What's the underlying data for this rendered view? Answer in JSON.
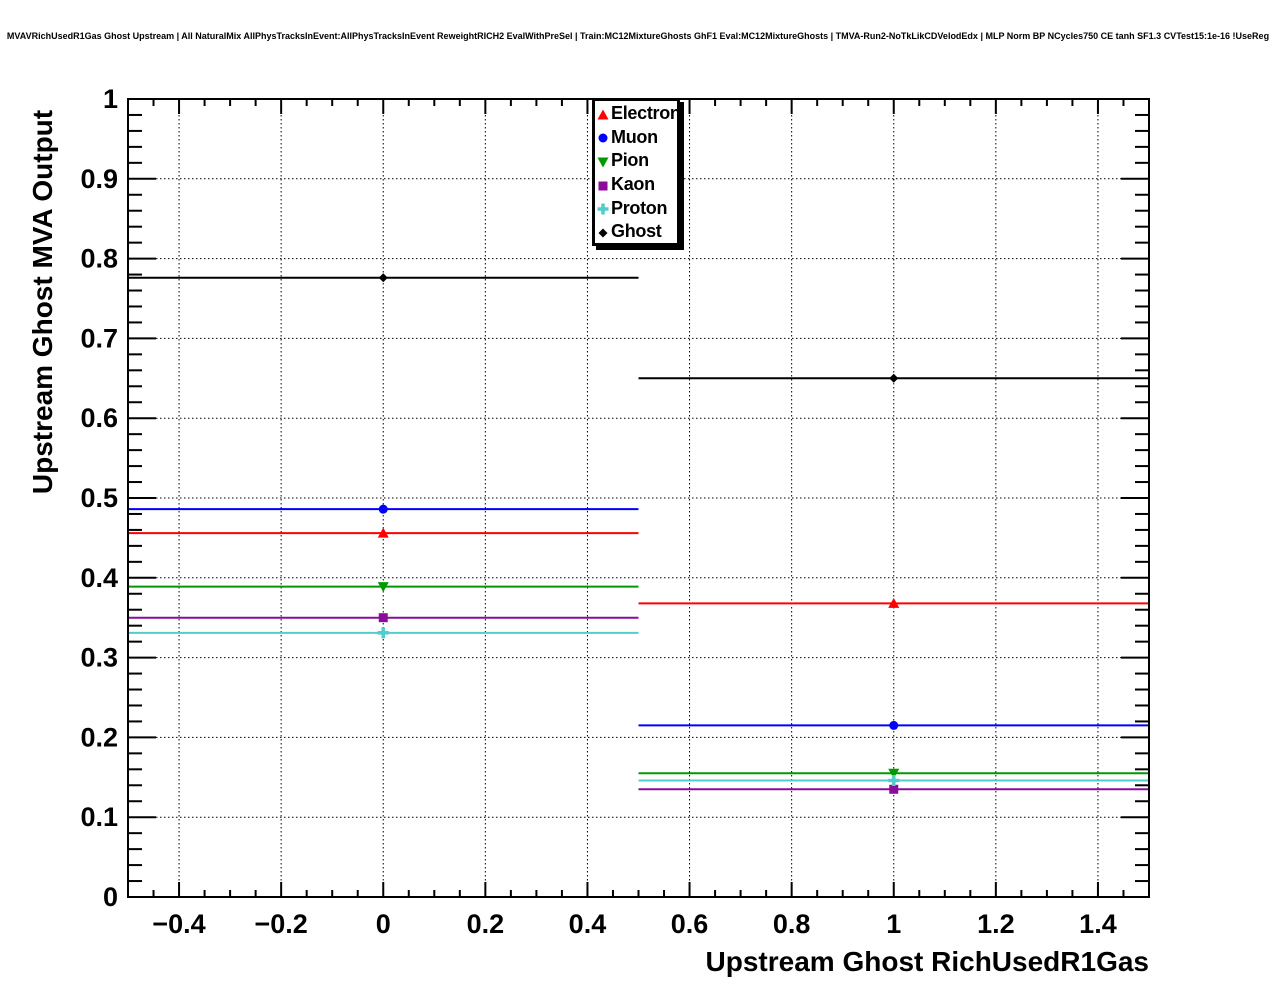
{
  "header": {
    "title": "MVAVRichUsedR1Gas Ghost Upstream | All NaturalMix AllPhysTracksInEvent:AllPhysTracksInEvent ReweightRICH2 EvalWithPreSel | Train:MC12MixtureGhosts GhF1 Eval:MC12MixtureGhosts | TMVA-Run2-NoTkLikCDVelodEdx | MLP Norm BP NCycles750 CE tanh SF1.3 CVTest15:1e-16 !UseReg"
  },
  "axes": {
    "x": {
      "title": "Upstream Ghost RichUsedR1Gas",
      "min": -0.5,
      "max": 1.5,
      "major_ticks": [
        -0.4,
        -0.2,
        0,
        0.2,
        0.4,
        0.6,
        0.8,
        1,
        1.2,
        1.4
      ],
      "major_labels": [
        "−0.4",
        "−0.2",
        "0",
        "0.2",
        "0.4",
        "0.6",
        "0.8",
        "1",
        "1.2",
        "1.4"
      ],
      "minor_step": 0.05
    },
    "y": {
      "title": "Upstream Ghost MVA Output",
      "min": 0,
      "max": 1,
      "major_ticks": [
        0,
        0.1,
        0.2,
        0.3,
        0.4,
        0.5,
        0.6,
        0.7,
        0.8,
        0.9,
        1
      ],
      "major_labels": [
        "0",
        "0.1",
        "0.2",
        "0.3",
        "0.4",
        "0.5",
        "0.6",
        "0.7",
        "0.8",
        "0.9",
        "1"
      ],
      "minor_step": 0.02
    }
  },
  "legend": {
    "items": [
      {
        "label": "Electron",
        "marker": "triangle-up",
        "color": "#ff0000"
      },
      {
        "label": "Muon",
        "marker": "circle",
        "color": "#0000ff"
      },
      {
        "label": "Pion",
        "marker": "triangle-down",
        "color": "#009900"
      },
      {
        "label": "Kaon",
        "marker": "square",
        "color": "#8b0b9b"
      },
      {
        "label": "Proton",
        "marker": "cross",
        "color": "#55cccc"
      },
      {
        "label": "Ghost",
        "marker": "diamond",
        "color": "#000000"
      }
    ]
  },
  "chart_data": {
    "type": "scatter",
    "title": "MVAVRichUsedR1Gas Ghost Upstream",
    "xlabel": "Upstream Ghost RichUsedR1Gas",
    "ylabel": "Upstream Ghost MVA Output",
    "xlim": [
      -0.5,
      1.5
    ],
    "ylim": [
      0,
      1
    ],
    "grid": "dotted",
    "legend_position": "top-inside",
    "x": [
      0,
      1
    ],
    "x_bin_edges": [
      -0.5,
      0.5,
      1.5
    ],
    "series": [
      {
        "name": "Electron",
        "color": "#ff0000",
        "marker": "triangle-up",
        "values": [
          0.456,
          0.368
        ]
      },
      {
        "name": "Muon",
        "color": "#0000ff",
        "marker": "circle",
        "values": [
          0.486,
          0.215
        ]
      },
      {
        "name": "Pion",
        "color": "#009900",
        "marker": "triangle-down",
        "values": [
          0.389,
          0.155
        ]
      },
      {
        "name": "Kaon",
        "color": "#8b0b9b",
        "marker": "square",
        "values": [
          0.35,
          0.135
        ]
      },
      {
        "name": "Proton",
        "color": "#55cccc",
        "marker": "cross",
        "values": [
          0.331,
          0.146
        ]
      },
      {
        "name": "Ghost",
        "color": "#000000",
        "marker": "diamond",
        "values": [
          0.776,
          0.65
        ]
      }
    ]
  }
}
